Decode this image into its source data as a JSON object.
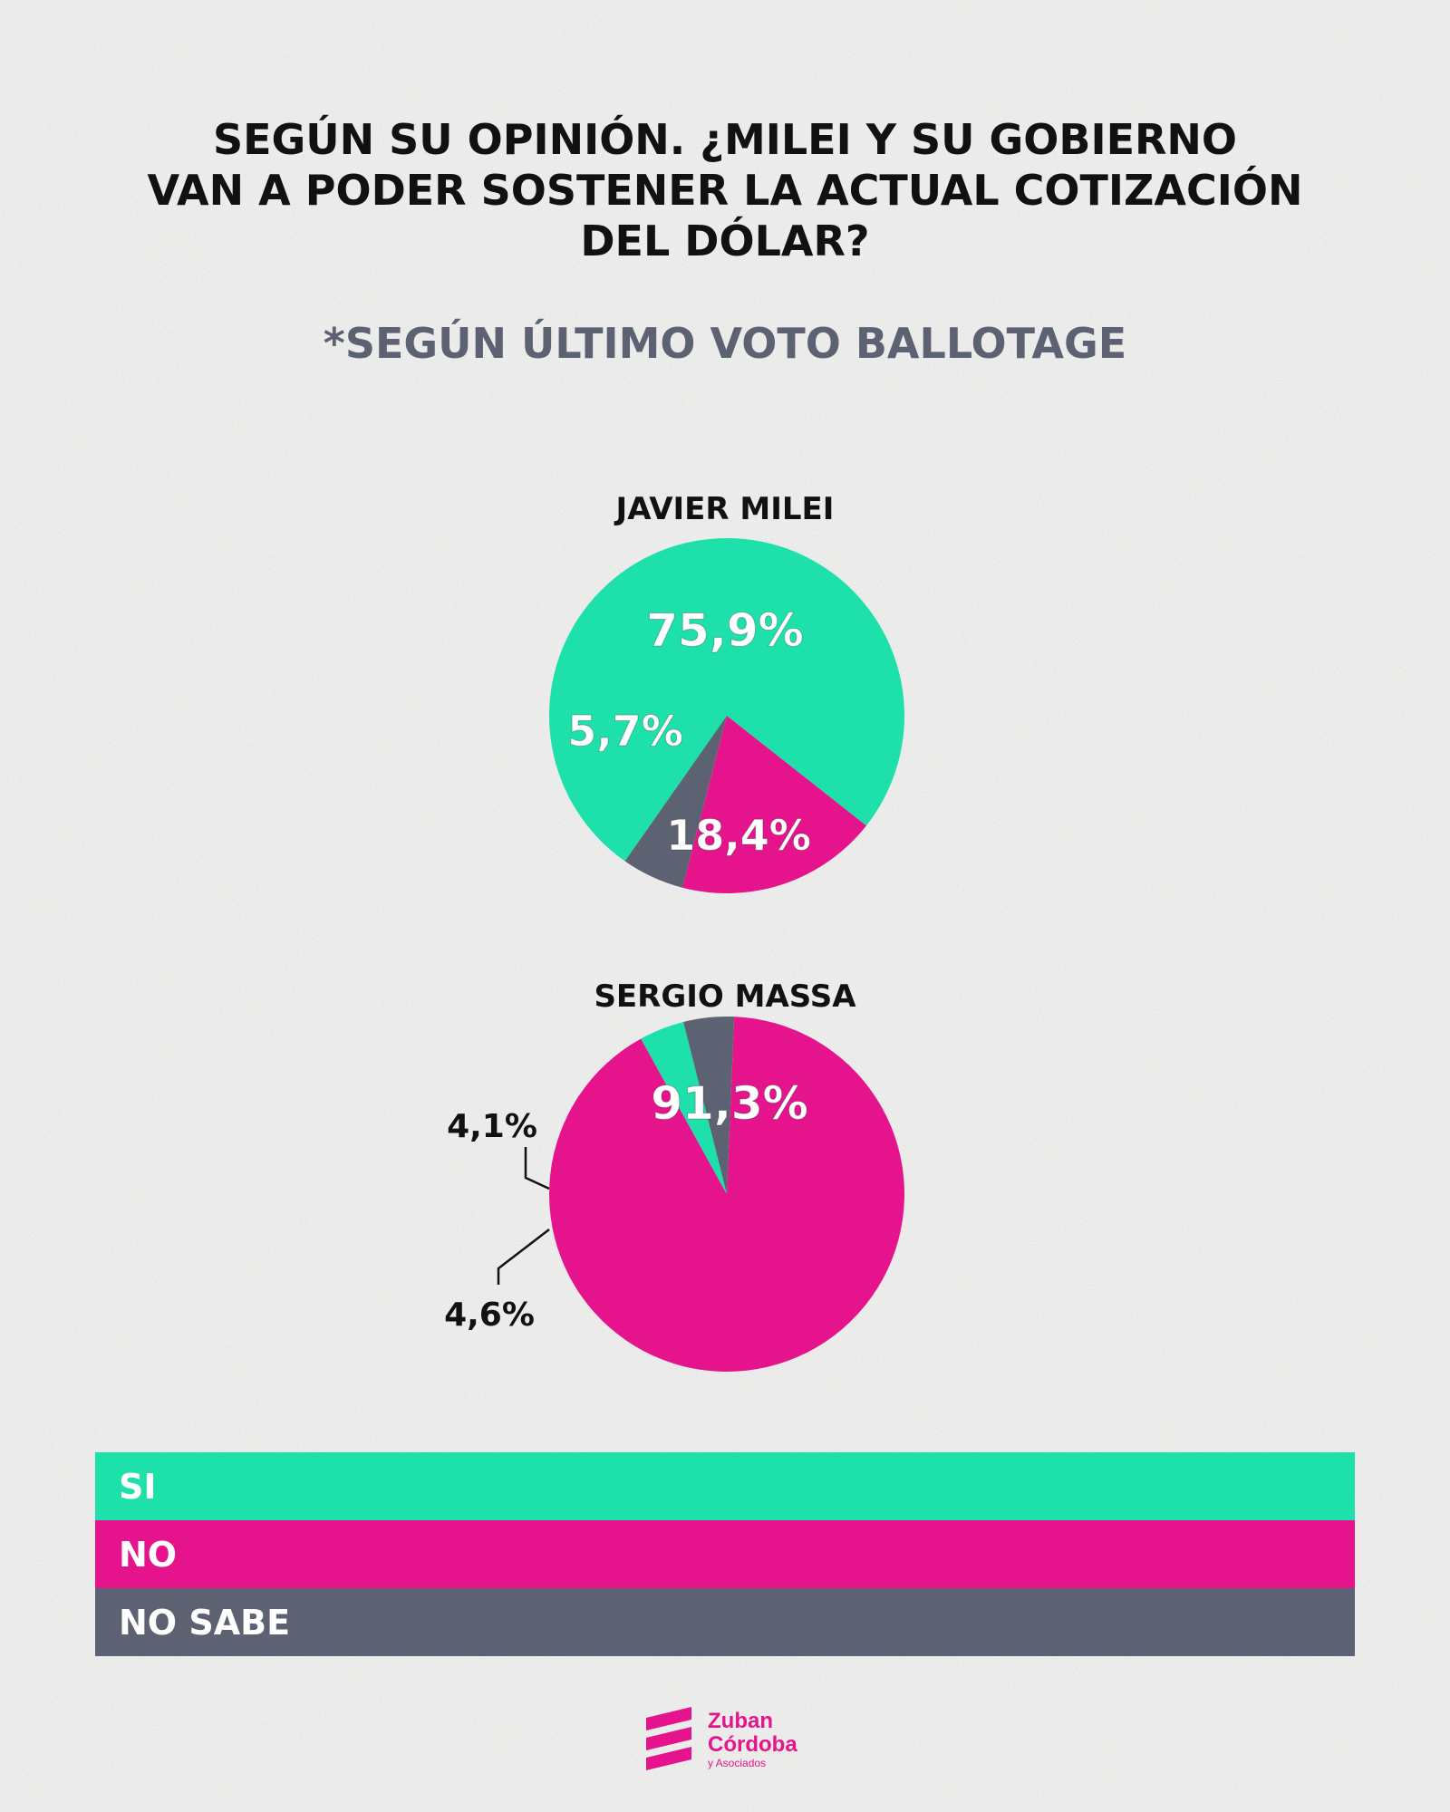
{
  "title_lines": [
    "SEGÚN SU OPINIÓN. ¿MILEI Y SU GOBIERNO",
    "VAN A PODER SOSTENER LA ACTUAL COTIZACIÓN",
    "DEL DÓLAR?"
  ],
  "subtitle": "*SEGÚN ÚLTIMO VOTO BALLOTAGE",
  "colors": {
    "si": "#1ee0aa",
    "no": "#e6148c",
    "no_sabe": "#5d6272",
    "background": "#ededec"
  },
  "chart_data": [
    {
      "type": "pie",
      "title": "JAVIER MILEI",
      "slices": [
        {
          "category": "SI",
          "value": 75.9,
          "label": "75,9%"
        },
        {
          "category": "NO",
          "value": 18.4,
          "label": "18,4%"
        },
        {
          "category": "NO SABE",
          "value": 5.7,
          "label": "5,7%"
        }
      ]
    },
    {
      "type": "pie",
      "title": "SERGIO MASSA",
      "slices": [
        {
          "category": "NO",
          "value": 91.3,
          "label": "91,3%"
        },
        {
          "category": "SI",
          "value": 4.1,
          "label": "4,1%"
        },
        {
          "category": "NO SABE",
          "value": 4.6,
          "label": "4,6%"
        }
      ]
    }
  ],
  "legend": [
    {
      "label": "SI",
      "color": "#1ee0aa"
    },
    {
      "label": "NO",
      "color": "#e6148c"
    },
    {
      "label": "NO SABE",
      "color": "#5d6272"
    }
  ],
  "logo": {
    "line1": "Zuban",
    "line2": "Córdoba",
    "line3": "y Asociados",
    "color": "#e6148c"
  }
}
